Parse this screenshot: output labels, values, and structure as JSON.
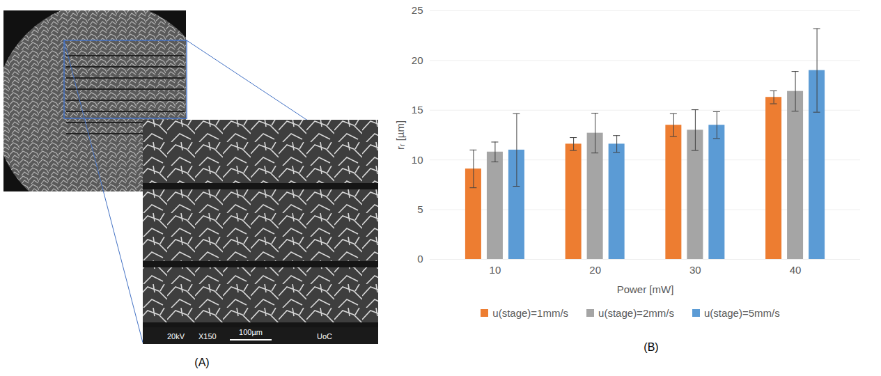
{
  "image_panel": {
    "panel_label": "(A)",
    "inset_texts": [
      "20kV",
      "X150",
      "100µm",
      "UoC"
    ]
  },
  "chart_data": {
    "type": "bar",
    "panel_label": "(B)",
    "x_label": "Power [mW]",
    "y_label": "rᵣ [µm]",
    "categories": [
      "10",
      "20",
      "30",
      "40"
    ],
    "series": [
      {
        "name": "u(stage)=1mm/s",
        "color": "#ED7D31",
        "values": [
          9.1,
          11.6,
          13.5,
          16.3
        ],
        "error": [
          1.9,
          0.65,
          1.15,
          0.65
        ]
      },
      {
        "name": "u(stage)=2mm/s",
        "color": "#A5A5A5",
        "values": [
          10.8,
          12.7,
          13.0,
          16.9
        ],
        "error": [
          1.0,
          2.0,
          2.05,
          2.0
        ]
      },
      {
        "name": "u(stage)=5mm/s",
        "color": "#5B9BD5",
        "values": [
          11.0,
          11.6,
          13.5,
          19.0
        ],
        "error": [
          3.65,
          0.85,
          1.35,
          4.2
        ]
      }
    ],
    "ylim": [
      0,
      25
    ],
    "yticks": [
      0,
      5,
      10,
      15,
      20,
      25
    ],
    "grid": true,
    "legend": "bottom"
  }
}
